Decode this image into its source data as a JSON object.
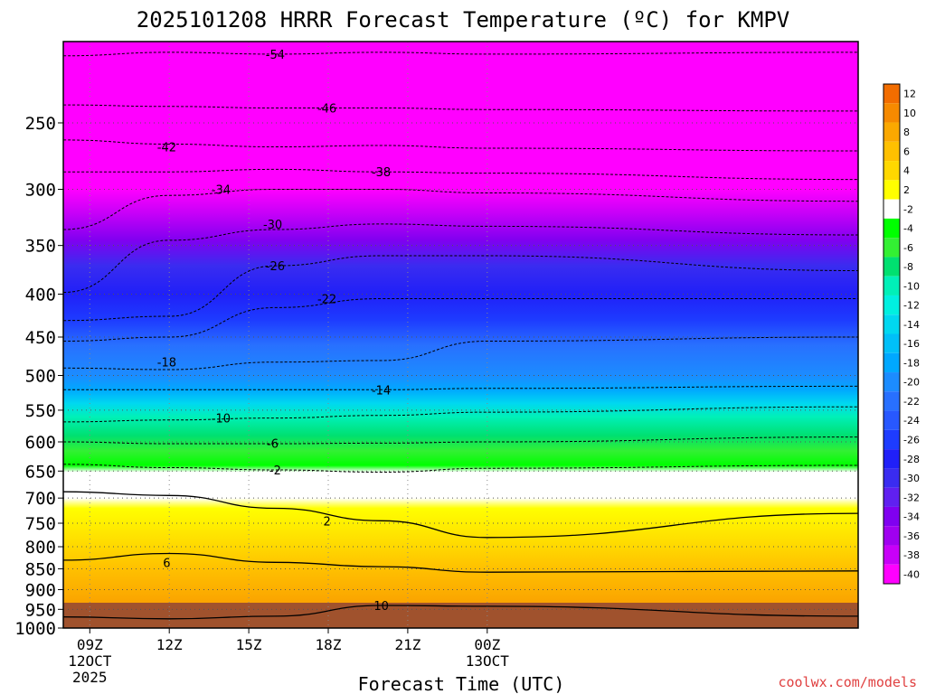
{
  "chart_data": {
    "type": "heatmap",
    "title": "2025101208 HRRR Forecast Temperature (ºC) for KMPV",
    "xlabel": "Forecast Time (UTC)",
    "ylabel": "",
    "credit": "coolwx.com/models",
    "y_scale": "log-pressure",
    "y_range_hpa": [
      1000,
      200
    ],
    "y_ticks": [
      250,
      300,
      350,
      400,
      450,
      500,
      550,
      600,
      650,
      700,
      750,
      800,
      850,
      900,
      950,
      1000
    ],
    "x_range_hours_utc": [
      8,
      14
    ],
    "x_ticks": [
      {
        "hour": 9,
        "lines": [
          "09Z",
          "12OCT",
          "2025"
        ]
      },
      {
        "hour": 12,
        "lines": [
          "12Z"
        ]
      },
      {
        "hour": 15,
        "lines": [
          "15Z"
        ]
      },
      {
        "hour": 18,
        "lines": [
          "18Z"
        ]
      },
      {
        "hour": 21,
        "lines": [
          "21Z"
        ]
      },
      {
        "hour": 24,
        "lines": [
          "00Z",
          "13OCT"
        ]
      }
    ],
    "grid": true,
    "colorbar": {
      "position": "right",
      "labels": [
        "12",
        "10",
        "8",
        "6",
        "4",
        "2",
        "-2",
        "-4",
        "-6",
        "-8",
        "-10",
        "-12",
        "-14",
        "-16",
        "-18",
        "-20",
        "-22",
        "-24",
        "-26",
        "-28",
        "-30",
        "-32",
        "-34",
        "-36",
        "-38",
        "-40"
      ],
      "colors": [
        "#f26d00",
        "#f68a00",
        "#fba800",
        "#ffc000",
        "#ffd800",
        "#ffff00",
        "#ffffff",
        "#00ff00",
        "#33f033",
        "#00e070",
        "#00f0b8",
        "#00f0e0",
        "#00d8f0",
        "#00c0f8",
        "#00a8ff",
        "#1c8cff",
        "#2870ff",
        "#2858ff",
        "#1e3cff",
        "#2020f8",
        "#3a2cf0",
        "#6020f0",
        "#8000f0",
        "#a000f0",
        "#c800f8",
        "#ff00ff"
      ]
    },
    "surface_band_color": "#a0522d",
    "isotherms": [
      {
        "label": "-54",
        "hpa": [
          208,
          206,
          207,
          206,
          207,
          206
        ]
      },
      {
        "label": "-46",
        "hpa": [
          238,
          239,
          240,
          240,
          241,
          242
        ]
      },
      {
        "label": "-42",
        "hpa": [
          262,
          265,
          267,
          266,
          268,
          270
        ]
      },
      {
        "label": "-38",
        "hpa": [
          286,
          286,
          284,
          286,
          287,
          292
        ]
      },
      {
        "label": "-34",
        "hpa": [
          335,
          305,
          300,
          300,
          303,
          310
        ]
      },
      {
        "label": "-30",
        "hpa": [
          398,
          345,
          335,
          330,
          332,
          340
        ]
      },
      {
        "label": "-26",
        "hpa": [
          430,
          425,
          370,
          360,
          360,
          375
        ]
      },
      {
        "label": "-22",
        "hpa": [
          455,
          450,
          415,
          405,
          405,
          405
        ]
      },
      {
        "label": "-18",
        "hpa": [
          490,
          492,
          482,
          480,
          455,
          450
        ]
      },
      {
        "label": "-14",
        "hpa": [
          520,
          520,
          520,
          520,
          518,
          515
        ]
      },
      {
        "label": "-10",
        "hpa": [
          568,
          565,
          562,
          558,
          553,
          545
        ]
      },
      {
        "label": "-6",
        "hpa": [
          600,
          603,
          603,
          602,
          600,
          592
        ]
      },
      {
        "label": "-2",
        "hpa": [
          638,
          644,
          648,
          652,
          645,
          640
        ]
      },
      {
        "label": "2",
        "hpa": [
          688,
          695,
          720,
          745,
          780,
          730
        ]
      },
      {
        "label": "6",
        "hpa": [
          830,
          815,
          835,
          845,
          858,
          855
        ]
      },
      {
        "label": "10",
        "hpa": [
          970,
          975,
          968,
          940,
          942,
          968
        ]
      }
    ]
  }
}
